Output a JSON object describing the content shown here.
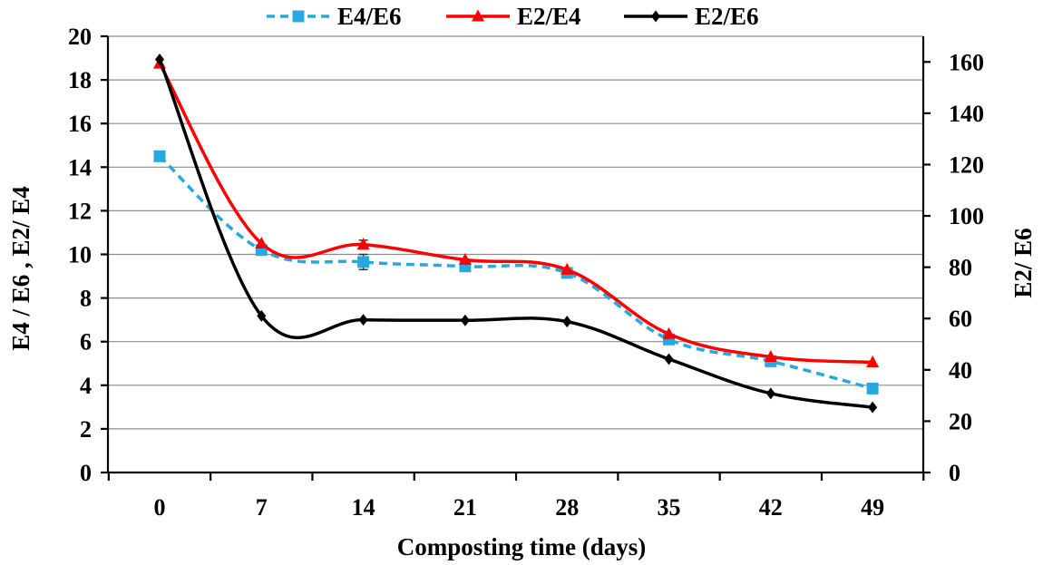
{
  "chart_data": {
    "type": "line",
    "xlabel": "Composting time (days)",
    "ylabel_left": "E4 / E6 , E2/ E4",
    "ylabel_right": "E2/ E6",
    "x": [
      "0",
      "7",
      "14",
      "21",
      "28",
      "35",
      "42",
      "49"
    ],
    "ylim_left": [
      0,
      20
    ],
    "yticks_left": [
      "0",
      "2",
      "4",
      "6",
      "8",
      "10",
      "12",
      "14",
      "16",
      "18",
      "20"
    ],
    "ylim_right": [
      0,
      170
    ],
    "yticks_right": [
      "0",
      "20",
      "40",
      "60",
      "80",
      "100",
      "120",
      "140",
      "160"
    ],
    "grid": "horizontal",
    "legend_position": "top",
    "series": [
      {
        "name": "E4/E6",
        "axis": "left",
        "color": "#29a8e0",
        "line_style": "dashed",
        "marker": "square",
        "values": [
          14.5,
          10.2,
          9.65,
          9.45,
          9.15,
          6.1,
          5.1,
          3.85
        ],
        "errors": [
          0,
          0,
          0.35,
          0,
          0,
          0,
          0,
          0
        ]
      },
      {
        "name": "E2/E4",
        "axis": "left",
        "color": "#ff0000",
        "line_style": "solid",
        "marker": "triangle",
        "values": [
          18.75,
          10.5,
          10.45,
          9.75,
          9.3,
          6.35,
          5.3,
          5.05
        ],
        "errors": [
          0,
          0,
          0.2,
          0,
          0,
          0,
          0,
          0
        ]
      },
      {
        "name": "E2/E6",
        "axis": "right",
        "color": "#000000",
        "line_style": "solid",
        "marker": "diamond",
        "values": [
          161,
          61,
          59.5,
          59.3,
          58.8,
          44.2,
          30.8,
          25.4
        ],
        "errors": [
          0,
          0,
          0,
          0,
          0,
          0,
          0,
          0
        ]
      }
    ]
  }
}
